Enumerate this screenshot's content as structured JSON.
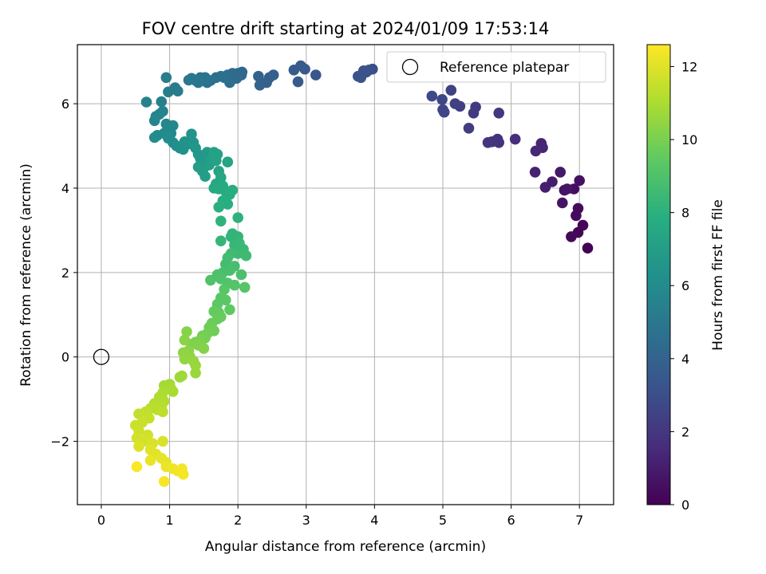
{
  "chart_data": {
    "type": "scatter",
    "title": "FOV centre drift starting at 2024/01/09 17:53:14",
    "xlabel": "Angular distance from reference (arcmin)",
    "ylabel": "Rotation from reference (arcmin)",
    "xlim": [
      -0.35,
      7.5
    ],
    "ylim": [
      -3.5,
      7.4
    ],
    "xticks": [
      0,
      1,
      2,
      3,
      4,
      5,
      6,
      7
    ],
    "yticks": [
      -2,
      0,
      2,
      4,
      6
    ],
    "ytick_labels": [
      "−2",
      "0",
      "2",
      "4",
      "6"
    ],
    "grid": true,
    "legend": {
      "position": "top-right",
      "entries": [
        "Reference platepar"
      ]
    },
    "colorbar": {
      "label": "Hours from first FF file",
      "range": [
        0,
        12.6
      ],
      "ticks": [
        0,
        2,
        4,
        6,
        8,
        10,
        12
      ],
      "colormap": "viridis"
    },
    "reference_point": {
      "x": 0,
      "y": 0
    },
    "points_xyh": [
      [
        7.12,
        2.58,
        0.05
      ],
      [
        6.98,
        2.95,
        0.15
      ],
      [
        7.05,
        3.12,
        0.2
      ],
      [
        6.88,
        2.85,
        0.25
      ],
      [
        6.95,
        3.35,
        0.35
      ],
      [
        6.98,
        3.52,
        0.4
      ],
      [
        6.92,
        3.98,
        0.5
      ],
      [
        7.0,
        4.18,
        0.55
      ],
      [
        6.78,
        3.95,
        0.65
      ],
      [
        6.75,
        3.65,
        0.7
      ],
      [
        6.82,
        3.98,
        0.75
      ],
      [
        6.72,
        4.38,
        0.85
      ],
      [
        6.6,
        4.15,
        0.95
      ],
      [
        6.5,
        4.02,
        1.05
      ],
      [
        6.35,
        4.38,
        1.2
      ],
      [
        6.44,
        5.06,
        1.3
      ],
      [
        6.46,
        4.96,
        1.35
      ],
      [
        6.36,
        4.88,
        1.4
      ],
      [
        6.06,
        5.16,
        1.6
      ],
      [
        5.82,
        5.08,
        1.75
      ],
      [
        5.8,
        5.16,
        1.8
      ],
      [
        5.72,
        5.1,
        1.85
      ],
      [
        5.66,
        5.08,
        1.9
      ],
      [
        5.82,
        5.78,
        2.0
      ],
      [
        5.48,
        5.92,
        2.1
      ],
      [
        5.45,
        5.78,
        2.15
      ],
      [
        5.38,
        5.42,
        2.2
      ],
      [
        5.25,
        5.94,
        2.3
      ],
      [
        5.18,
        6.0,
        2.4
      ],
      [
        5.12,
        6.32,
        2.45
      ],
      [
        5.02,
        5.8,
        2.55
      ],
      [
        5.0,
        5.86,
        2.6
      ],
      [
        4.99,
        6.1,
        2.7
      ],
      [
        4.84,
        6.18,
        2.8
      ],
      [
        3.97,
        6.82,
        3.0
      ],
      [
        3.92,
        6.8,
        3.05
      ],
      [
        3.88,
        6.75,
        3.1
      ],
      [
        3.84,
        6.78,
        3.15
      ],
      [
        3.8,
        6.62,
        3.2
      ],
      [
        3.76,
        6.65,
        3.25
      ],
      [
        3.14,
        6.68,
        3.4
      ],
      [
        2.98,
        6.82,
        3.5
      ],
      [
        2.92,
        6.9,
        3.55
      ],
      [
        2.88,
        6.52,
        3.6
      ],
      [
        2.82,
        6.8,
        3.65
      ],
      [
        2.52,
        6.68,
        3.8
      ],
      [
        2.46,
        6.62,
        3.85
      ],
      [
        2.42,
        6.5,
        3.9
      ],
      [
        2.32,
        6.44,
        3.95
      ],
      [
        2.3,
        6.65,
        4.0
      ],
      [
        2.06,
        6.75,
        4.2
      ],
      [
        2.05,
        6.68,
        4.25
      ],
      [
        2.0,
        6.72,
        4.3
      ],
      [
        1.98,
        6.6,
        4.35
      ],
      [
        1.92,
        6.72,
        4.4
      ],
      [
        1.88,
        6.5,
        4.45
      ],
      [
        1.85,
        6.68,
        4.5
      ],
      [
        1.8,
        6.62,
        4.55
      ],
      [
        1.75,
        6.65,
        4.6
      ],
      [
        1.68,
        6.62,
        4.65
      ],
      [
        1.6,
        6.55,
        4.7
      ],
      [
        1.55,
        6.5,
        4.75
      ],
      [
        1.52,
        6.62,
        4.8
      ],
      [
        1.45,
        6.62,
        4.85
      ],
      [
        1.42,
        6.5,
        4.9
      ],
      [
        1.38,
        6.55,
        4.95
      ],
      [
        1.32,
        6.6,
        5.0
      ],
      [
        1.28,
        6.56,
        5.05
      ],
      [
        1.12,
        6.3,
        5.2
      ],
      [
        1.08,
        6.38,
        5.25
      ],
      [
        0.98,
        6.28,
        5.3
      ],
      [
        0.95,
        6.62,
        5.35
      ],
      [
        0.88,
        6.05,
        5.45
      ],
      [
        0.66,
        6.04,
        5.55
      ],
      [
        0.9,
        5.82,
        5.6
      ],
      [
        0.8,
        5.7,
        5.65
      ],
      [
        0.85,
        5.75,
        5.7
      ],
      [
        0.78,
        5.6,
        5.75
      ],
      [
        0.95,
        5.52,
        5.8
      ],
      [
        1.05,
        5.48,
        5.85
      ],
      [
        1.02,
        5.3,
        5.9
      ],
      [
        0.92,
        5.3,
        5.95
      ],
      [
        0.82,
        5.25,
        6.0
      ],
      [
        0.78,
        5.2,
        6.05
      ],
      [
        0.98,
        5.18,
        6.1
      ],
      [
        1.05,
        5.08,
        6.15
      ],
      [
        1.1,
        5.0,
        6.2
      ],
      [
        1.15,
        4.95,
        6.25
      ],
      [
        1.2,
        4.92,
        6.3
      ],
      [
        1.22,
        5.1,
        6.35
      ],
      [
        1.28,
        5.05,
        6.4
      ],
      [
        1.32,
        5.28,
        6.45
      ],
      [
        1.35,
        5.08,
        6.5
      ],
      [
        1.38,
        4.95,
        6.55
      ],
      [
        1.42,
        4.8,
        6.6
      ],
      [
        1.45,
        4.7,
        6.65
      ],
      [
        1.48,
        4.6,
        6.7
      ],
      [
        1.52,
        4.62,
        6.75
      ],
      [
        1.55,
        4.85,
        6.8
      ],
      [
        1.5,
        4.48,
        6.85
      ],
      [
        1.42,
        4.5,
        6.9
      ],
      [
        1.48,
        4.4,
        6.95
      ],
      [
        1.52,
        4.28,
        7.0
      ],
      [
        1.58,
        4.55,
        7.05
      ],
      [
        1.62,
        4.7,
        7.1
      ],
      [
        1.65,
        4.85,
        7.15
      ],
      [
        1.7,
        4.8,
        7.2
      ],
      [
        1.68,
        4.65,
        7.25
      ],
      [
        1.72,
        4.4,
        7.3
      ],
      [
        1.85,
        4.62,
        7.35
      ],
      [
        1.75,
        4.25,
        7.45
      ],
      [
        1.68,
        4.1,
        7.5
      ],
      [
        1.65,
        4.0,
        7.55
      ],
      [
        1.72,
        3.98,
        7.6
      ],
      [
        1.78,
        4.05,
        7.65
      ],
      [
        1.82,
        3.92,
        7.7
      ],
      [
        1.88,
        3.85,
        7.75
      ],
      [
        1.92,
        3.95,
        7.8
      ],
      [
        1.78,
        3.7,
        7.85
      ],
      [
        1.85,
        3.62,
        7.9
      ],
      [
        1.72,
        3.55,
        7.95
      ],
      [
        2.0,
        3.3,
        8.05
      ],
      [
        1.75,
        3.22,
        8.1
      ],
      [
        1.9,
        2.85,
        8.15
      ],
      [
        1.92,
        2.92,
        8.2
      ],
      [
        2.0,
        2.85,
        8.25
      ],
      [
        1.75,
        2.75,
        8.3
      ],
      [
        1.95,
        2.65,
        8.35
      ],
      [
        2.02,
        2.7,
        8.4
      ],
      [
        2.08,
        2.55,
        8.45
      ],
      [
        2.0,
        2.45,
        8.5
      ],
      [
        2.12,
        2.4,
        8.55
      ],
      [
        1.9,
        2.45,
        8.6
      ],
      [
        1.85,
        2.35,
        8.65
      ],
      [
        1.82,
        2.2,
        8.7
      ],
      [
        1.95,
        2.15,
        8.75
      ],
      [
        1.88,
        2.05,
        8.8
      ],
      [
        1.78,
        2.0,
        8.85
      ],
      [
        2.05,
        1.95,
        8.9
      ],
      [
        1.7,
        1.95,
        8.95
      ],
      [
        1.75,
        1.85,
        9.0
      ],
      [
        1.6,
        1.82,
        9.05
      ],
      [
        1.85,
        1.75,
        9.1
      ],
      [
        1.95,
        1.7,
        9.15
      ],
      [
        2.1,
        1.65,
        9.2
      ],
      [
        1.8,
        1.6,
        9.25
      ],
      [
        1.75,
        1.4,
        9.3
      ],
      [
        1.82,
        1.35,
        9.35
      ],
      [
        1.7,
        1.25,
        9.4
      ],
      [
        1.88,
        1.12,
        9.45
      ],
      [
        1.72,
        1.05,
        9.5
      ],
      [
        1.65,
        1.08,
        9.55
      ],
      [
        1.75,
        0.95,
        9.6
      ],
      [
        1.7,
        0.9,
        9.65
      ],
      [
        1.62,
        0.8,
        9.7
      ],
      [
        1.58,
        0.7,
        9.75
      ],
      [
        1.65,
        0.62,
        9.8
      ],
      [
        1.55,
        0.55,
        9.85
      ],
      [
        1.48,
        0.5,
        9.9
      ],
      [
        1.52,
        0.45,
        9.95
      ],
      [
        1.45,
        0.4,
        10.0
      ],
      [
        1.38,
        0.35,
        10.05
      ],
      [
        1.32,
        0.3,
        10.1
      ],
      [
        1.42,
        0.28,
        10.15
      ],
      [
        1.5,
        0.2,
        10.2
      ],
      [
        1.25,
        0.6,
        10.25
      ],
      [
        1.22,
        0.4,
        10.3
      ],
      [
        1.28,
        0.15,
        10.35
      ],
      [
        1.2,
        0.1,
        10.4
      ],
      [
        1.3,
        0.0,
        10.45
      ],
      [
        1.22,
        -0.05,
        10.5
      ],
      [
        1.35,
        -0.1,
        10.55
      ],
      [
        1.38,
        -0.2,
        10.6
      ],
      [
        1.38,
        -0.38,
        10.65
      ],
      [
        1.18,
        -0.45,
        10.7
      ],
      [
        1.15,
        -0.48,
        10.75
      ],
      [
        1.0,
        -0.65,
        10.8
      ],
      [
        0.92,
        -0.68,
        10.85
      ],
      [
        1.02,
        -0.75,
        10.9
      ],
      [
        1.05,
        -0.82,
        10.95
      ],
      [
        0.9,
        -0.85,
        11.0
      ],
      [
        0.85,
        -0.95,
        11.05
      ],
      [
        0.92,
        -1.05,
        11.1
      ],
      [
        0.78,
        -1.1,
        11.15
      ],
      [
        0.88,
        -1.18,
        11.2
      ],
      [
        0.72,
        -1.22,
        11.25
      ],
      [
        0.82,
        -1.25,
        11.3
      ],
      [
        0.9,
        -1.3,
        11.35
      ],
      [
        0.65,
        -1.3,
        11.4
      ],
      [
        0.55,
        -1.35,
        11.45
      ],
      [
        0.7,
        -1.45,
        11.5
      ],
      [
        0.6,
        -1.55,
        11.55
      ],
      [
        0.5,
        -1.62,
        11.6
      ],
      [
        0.55,
        -1.75,
        11.65
      ],
      [
        0.68,
        -1.85,
        11.7
      ],
      [
        0.52,
        -1.92,
        11.75
      ],
      [
        0.62,
        -2.0,
        11.8
      ],
      [
        0.75,
        -2.05,
        11.85
      ],
      [
        0.9,
        -2.0,
        11.9
      ],
      [
        0.55,
        -2.12,
        11.95
      ],
      [
        0.72,
        -2.2,
        12.0
      ],
      [
        0.8,
        -2.3,
        12.05
      ],
      [
        0.88,
        -2.4,
        12.1
      ],
      [
        0.95,
        -2.5,
        12.15
      ],
      [
        0.72,
        -2.45,
        12.2
      ],
      [
        0.95,
        -2.6,
        12.25
      ],
      [
        1.05,
        -2.65,
        12.3
      ],
      [
        1.12,
        -2.7,
        12.35
      ],
      [
        1.18,
        -2.65,
        12.4
      ],
      [
        1.2,
        -2.78,
        12.45
      ],
      [
        0.92,
        -2.95,
        12.5
      ],
      [
        0.52,
        -2.6,
        12.55
      ]
    ]
  }
}
